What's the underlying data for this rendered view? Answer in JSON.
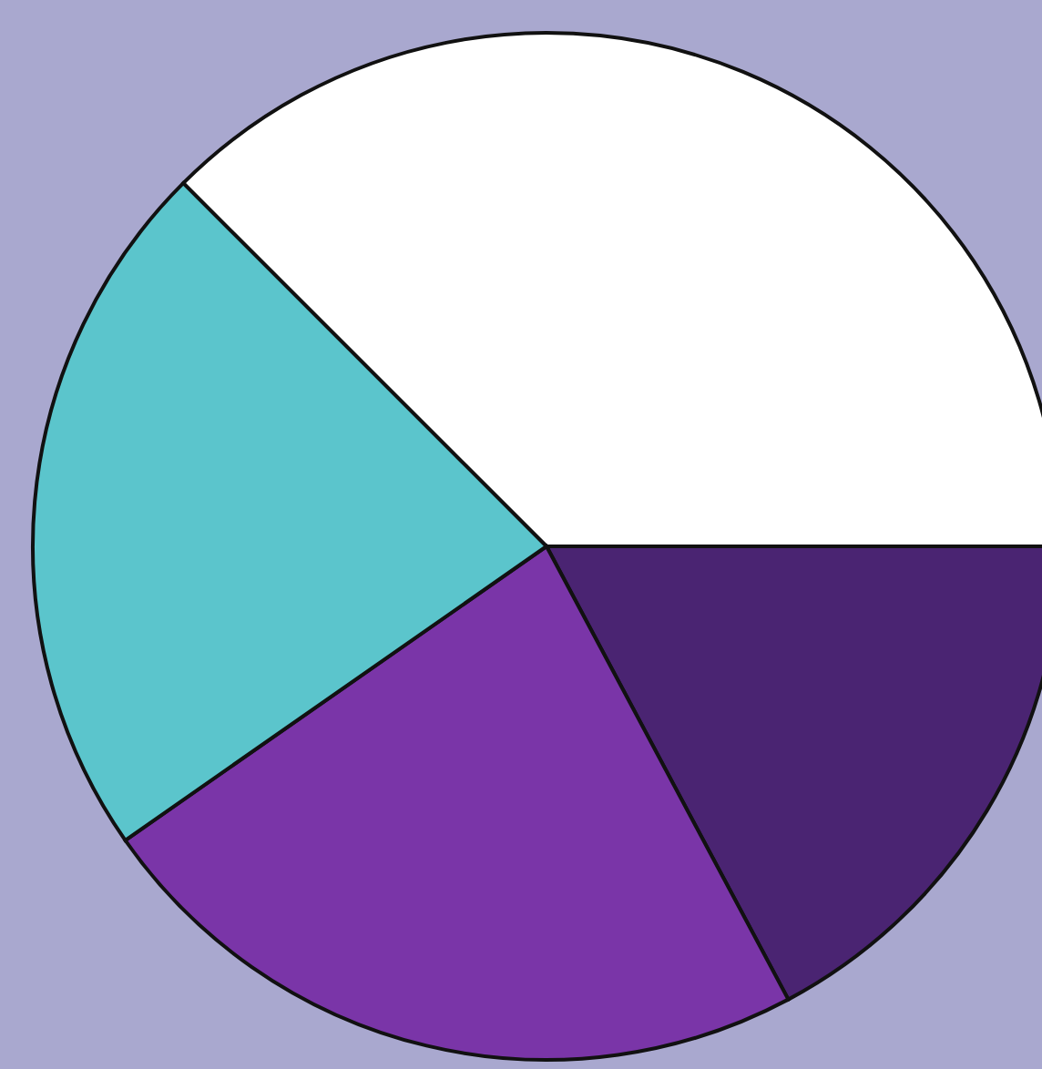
{
  "chart_data": {
    "type": "pie",
    "categories": [
      null,
      null,
      null,
      null
    ],
    "values": [
      37.5,
      17.2,
      23.1,
      22.2
    ],
    "colors": [
      "#ffffff",
      "#4a2472",
      "#7a35a8",
      "#5bc5cc"
    ]
  }
}
